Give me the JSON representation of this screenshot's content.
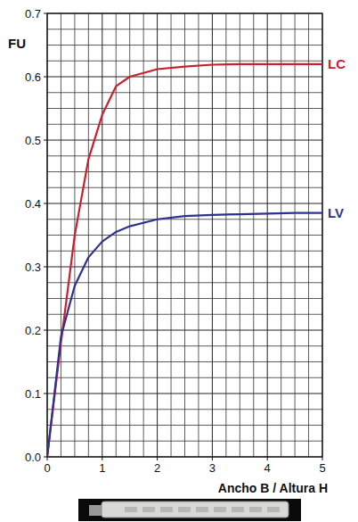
{
  "chart_data": {
    "type": "line",
    "x_label": "Ancho B / Altura H",
    "y_label": "FU",
    "x": [
      0,
      0.25,
      0.5,
      0.75,
      1,
      1.25,
      1.5,
      2,
      2.5,
      3,
      3.5,
      4,
      4.5,
      5
    ],
    "series": [
      {
        "name": "LC",
        "color": "#c8202f",
        "values": [
          0,
          0.18,
          0.35,
          0.47,
          0.54,
          0.585,
          0.6,
          0.612,
          0.616,
          0.619,
          0.62,
          0.62,
          0.62,
          0.62
        ]
      },
      {
        "name": "LV",
        "color": "#2e3192",
        "values": [
          0,
          0.19,
          0.27,
          0.315,
          0.34,
          0.355,
          0.364,
          0.375,
          0.38,
          0.382,
          0.383,
          0.384,
          0.385,
          0.385
        ]
      }
    ],
    "xlim": [
      0,
      5
    ],
    "ylim": [
      0,
      0.7
    ],
    "xticks": [
      0,
      1,
      2,
      3,
      4,
      5
    ],
    "yticks": [
      {
        "value": 0,
        "label": "0.0"
      },
      0.1,
      0.2,
      0.3,
      0.4,
      0.5,
      0.6,
      0.7
    ],
    "grid": true
  }
}
